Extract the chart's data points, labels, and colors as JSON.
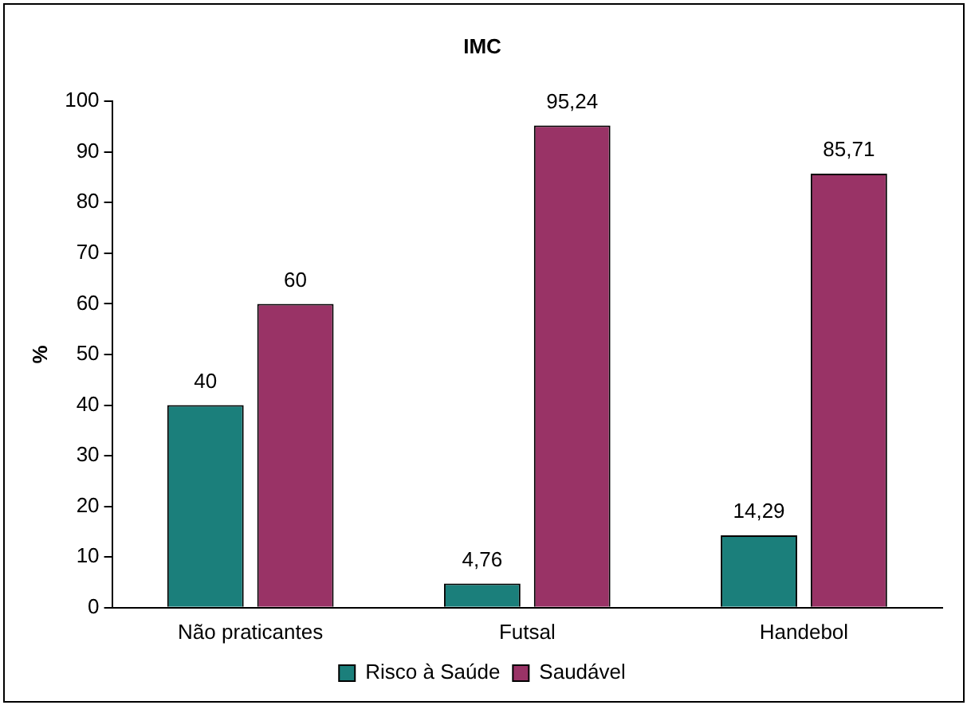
{
  "chart_data": {
    "type": "bar",
    "title": "IMC",
    "ylabel": "%",
    "categories": [
      "Não praticantes",
      "Futsal",
      "Handebol"
    ],
    "series": [
      {
        "name": "Risco à Saúde",
        "color": "#1b7f7b",
        "values": [
          40,
          4.76,
          14.29
        ],
        "value_labels": [
          "40",
          "4,76",
          "14,29"
        ]
      },
      {
        "name": "Saudável",
        "color": "#993366",
        "values": [
          60,
          95.24,
          85.71
        ],
        "value_labels": [
          "60",
          "95,24",
          "85,71"
        ]
      }
    ],
    "ylim": [
      0,
      100
    ],
    "yticks": [
      0,
      10,
      20,
      30,
      40,
      50,
      60,
      70,
      80,
      90,
      100
    ],
    "grid": false,
    "legend": "bottom"
  }
}
